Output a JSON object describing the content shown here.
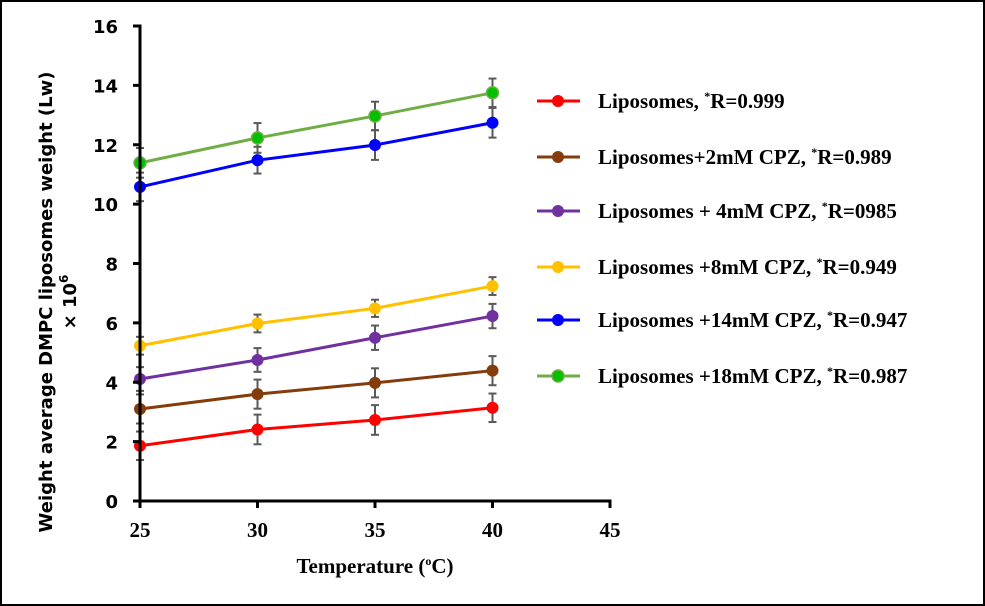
{
  "chart_data": {
    "type": "line",
    "title": "",
    "xlabel": "Temperature (oC)",
    "xlabel_parts": {
      "pre": "Temperature (",
      "sup": "o",
      "post": "C)"
    },
    "ylabel": "Weight average DMPC liposomes weight (Lw) × 10^6",
    "ylabel_line1": "Weight average DMPC liposomes weight (Lw)",
    "ylabel_line2_pre": "× 10",
    "ylabel_line2_sup": "6",
    "xlim": [
      25,
      45
    ],
    "ylim": [
      0,
      16
    ],
    "xticks": [
      25,
      30,
      35,
      40,
      45
    ],
    "yticks": [
      0,
      2,
      4,
      6,
      8,
      10,
      12,
      14,
      16
    ],
    "xtick_labels": [
      "25",
      "30",
      "35",
      "40",
      "45"
    ],
    "ytick_labels": [
      "0",
      "2",
      "4",
      "6",
      "8",
      "10",
      "12",
      "14",
      "16"
    ],
    "grid": false,
    "legend_position": "right",
    "error_bar_color": "#595959",
    "x": [
      25,
      30,
      35,
      40
    ],
    "series": [
      {
        "name": "Liposomes, *R=0.999",
        "label_pre": "Liposomes, ",
        "label_sup": "*",
        "label_post": "R=0.999",
        "line_color": "#FF0000",
        "marker_color": "#FF0000",
        "values": [
          1.86,
          2.41,
          2.73,
          3.14
        ],
        "errors": [
          0.48,
          0.5,
          0.5,
          0.48
        ]
      },
      {
        "name": "Liposomes+2mM CPZ, *R=0.989",
        "label_pre": "Liposomes+2mM CPZ, ",
        "label_sup": "*",
        "label_post": "R=0.989",
        "line_color": "#843C0C",
        "marker_color": "#843C0C",
        "values": [
          3.1,
          3.6,
          3.98,
          4.39
        ],
        "errors": [
          0.49,
          0.49,
          0.49,
          0.49
        ]
      },
      {
        "name": "Liposomes + 4mM CPZ, *R=0985",
        "label_pre": "Liposomes + 4mM CPZ, ",
        "label_sup": "*",
        "label_post": "R=0985",
        "line_color": "#7030A0",
        "marker_color": "#7030A0",
        "values": [
          4.11,
          4.75,
          5.5,
          6.23
        ],
        "errors": [
          0.4,
          0.4,
          0.41,
          0.41
        ]
      },
      {
        "name": "Liposomes +8mM CPZ, *R=0.949",
        "label_pre": "Liposomes +8mM CPZ, ",
        "label_sup": "*",
        "label_post": "R=0.949",
        "line_color": "#FFC000",
        "marker_color": "#FFC000",
        "values": [
          5.23,
          5.98,
          6.49,
          7.24
        ],
        "errors": [
          0.3,
          0.3,
          0.29,
          0.3
        ]
      },
      {
        "name": "Liposomes +14mM CPZ, *R=0.947",
        "label_pre": "Liposomes +14mM CPZ, ",
        "label_sup": "*",
        "label_post": "R=0.947",
        "line_color": "#0000FF",
        "marker_color": "#0000FF",
        "values": [
          10.58,
          11.48,
          11.99,
          12.74
        ],
        "errors": [
          0.48,
          0.45,
          0.5,
          0.5
        ]
      },
      {
        "name": "Liposomes +18mM CPZ, *R=0.987",
        "label_pre": "Liposomes +18mM CPZ, ",
        "label_sup": "*",
        "label_post": "R=0.987",
        "line_color": "#70AD47",
        "marker_color": "#00C000",
        "values": [
          11.39,
          12.23,
          12.97,
          13.75
        ],
        "errors": [
          0.5,
          0.5,
          0.48,
          0.48
        ]
      }
    ]
  }
}
